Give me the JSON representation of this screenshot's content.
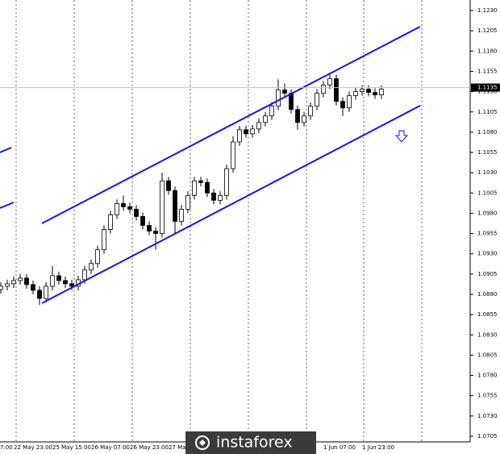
{
  "chart_data": {
    "type": "candlestick",
    "categories": [
      "7:00",
      null,
      "22 May 23:00",
      null,
      null,
      null,
      null,
      null,
      "25 May 15:00",
      null,
      null,
      null,
      null,
      null,
      "26 May 07:00",
      null,
      null,
      null,
      null,
      null,
      "26 May 23:00",
      null,
      null,
      null,
      null,
      null,
      "27 Ma",
      null,
      null,
      null,
      null,
      null,
      null,
      null,
      null,
      null,
      null,
      null,
      null,
      null,
      null,
      null,
      null,
      null,
      null,
      null,
      null,
      null,
      null,
      null,
      "1 Jun 07:00",
      null,
      null,
      null,
      null,
      null,
      "1 Jun 23:00",
      null,
      null,
      null
    ],
    "open": [
      1.0886,
      1.089,
      1.0893,
      1.0897,
      1.09,
      1.0892,
      1.0885,
      1.0875,
      1.089,
      1.0903,
      1.0897,
      1.0893,
      1.089,
      1.0898,
      1.091,
      1.0918,
      1.0935,
      1.096,
      1.0978,
      1.0992,
      1.0988,
      1.0985,
      1.0976,
      1.0965,
      1.0958,
      1.0955,
      1.102,
      1.1008,
      1.097,
      1.0985,
      1.1002,
      1.102,
      1.1018,
      1.1005,
      1.0996,
      1.1002,
      1.1035,
      1.1068,
      1.1083,
      1.1078,
      1.1084,
      1.1092,
      1.11,
      1.1112,
      1.1132,
      1.1128,
      1.1108,
      1.1092,
      1.11,
      1.1112,
      1.1128,
      1.1138,
      1.1146,
      1.1118,
      1.111,
      1.1125,
      1.113,
      1.1133,
      1.1129,
      1.1126
    ],
    "high": [
      1.0895,
      1.0898,
      1.0902,
      1.0905,
      1.0905,
      1.0897,
      1.089,
      1.0895,
      1.0915,
      1.0908,
      1.0902,
      1.0898,
      1.0903,
      1.0915,
      1.0923,
      1.094,
      1.0965,
      1.0983,
      1.0997,
      1.1002,
      1.0993,
      1.099,
      1.0981,
      1.097,
      1.0963,
      1.103,
      1.1025,
      1.1013,
      1.099,
      1.1007,
      1.1025,
      1.1025,
      1.1023,
      1.101,
      1.1007,
      1.104,
      1.1075,
      1.1088,
      1.1088,
      1.1089,
      1.1097,
      1.1105,
      1.1117,
      1.1145,
      1.114,
      1.1133,
      1.1113,
      1.1105,
      1.1117,
      1.1133,
      1.1143,
      1.1152,
      1.1151,
      1.1123,
      1.113,
      1.1135,
      1.1138,
      1.1138,
      1.1134,
      1.1138
    ],
    "low": [
      1.0881,
      1.0885,
      1.0888,
      1.0892,
      1.0887,
      1.088,
      1.0867,
      1.087,
      1.0885,
      1.0892,
      1.0888,
      1.0885,
      1.0885,
      1.0893,
      1.0905,
      1.0913,
      1.093,
      1.0955,
      1.0973,
      1.0983,
      1.098,
      1.0971,
      1.096,
      1.0953,
      1.0935,
      1.095,
      1.1003,
      1.0955,
      1.0965,
      1.098,
      1.0997,
      1.1013,
      1.1,
      1.0991,
      1.0991,
      1.0997,
      1.103,
      1.1063,
      1.1073,
      1.1073,
      1.1079,
      1.1087,
      1.1095,
      1.1107,
      1.1123,
      1.1103,
      1.1083,
      1.1087,
      1.1095,
      1.1107,
      1.1123,
      1.1133,
      1.1113,
      1.11,
      1.1105,
      1.112,
      1.1125,
      1.1124,
      1.1121,
      1.1121
    ],
    "close": [
      1.089,
      1.0893,
      1.0897,
      1.09,
      1.0892,
      1.0885,
      1.0875,
      1.089,
      1.0903,
      1.0897,
      1.0893,
      1.089,
      1.0898,
      1.091,
      1.0918,
      1.0935,
      1.096,
      1.0978,
      1.0992,
      1.0988,
      1.0985,
      1.0976,
      1.0965,
      1.0958,
      1.0955,
      1.102,
      1.1008,
      1.097,
      1.0985,
      1.1002,
      1.102,
      1.1018,
      1.1005,
      1.0996,
      1.1002,
      1.1035,
      1.1068,
      1.1083,
      1.1078,
      1.1084,
      1.1092,
      1.11,
      1.1112,
      1.1132,
      1.1128,
      1.1108,
      1.1092,
      1.11,
      1.1112,
      1.1128,
      1.1138,
      1.1146,
      1.1118,
      1.111,
      1.1125,
      1.113,
      1.1133,
      1.1129,
      1.1126,
      1.1133
    ],
    "color": "#000000",
    "ylim": [
      1.0698,
      1.1243
    ],
    "yticks": [
      1.0705,
      {
        "value": 1.073,
        "label": "1.0730"
      },
      1.0755,
      {
        "value": 1.078,
        "label": "1.0780"
      },
      1.0805,
      {
        "value": 1.083,
        "label": "1.0830"
      },
      1.0855,
      {
        "value": 1.088,
        "label": "1.0880"
      },
      1.0905,
      {
        "value": 1.093,
        "label": "1.0930"
      },
      1.0955,
      {
        "value": 1.098,
        "label": "1.0980"
      },
      1.1005,
      {
        "value": 1.103,
        "label": "1.1030"
      },
      1.1055,
      {
        "value": 1.108,
        "label": "1.1080"
      },
      1.1105,
      {
        "value": 1.113,
        "label": "1.1130"
      },
      1.1155,
      {
        "value": 1.118,
        "label": "1.1180"
      },
      1.1205,
      {
        "value": 1.123,
        "label": "1.1230"
      }
    ],
    "current_price": 1.1135,
    "watermark": "instaforex"
  }
}
